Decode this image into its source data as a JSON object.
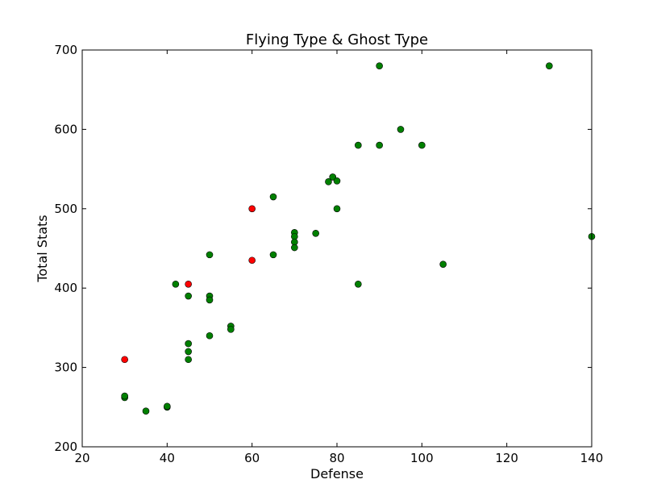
{
  "chart_data": {
    "type": "scatter",
    "title": "Flying Type & Ghost Type",
    "xlabel": "Defense",
    "ylabel": "Total Stats",
    "xlim": [
      20,
      140
    ],
    "ylim": [
      200,
      700
    ],
    "xticks": [
      20,
      40,
      60,
      80,
      100,
      120,
      140
    ],
    "yticks": [
      200,
      300,
      400,
      500,
      600,
      700
    ],
    "grid": false,
    "series": [
      {
        "color": "#008000",
        "points": [
          [
            30,
            262
          ],
          [
            30,
            264
          ],
          [
            35,
            245
          ],
          [
            40,
            250
          ],
          [
            40,
            251
          ],
          [
            42,
            405
          ],
          [
            45,
            390
          ],
          [
            45,
            330
          ],
          [
            45,
            320
          ],
          [
            45,
            310
          ],
          [
            50,
            442
          ],
          [
            50,
            390
          ],
          [
            50,
            385
          ],
          [
            50,
            340
          ],
          [
            55,
            352
          ],
          [
            55,
            348
          ],
          [
            65,
            515
          ],
          [
            65,
            442
          ],
          [
            70,
            470
          ],
          [
            70,
            465
          ],
          [
            70,
            458
          ],
          [
            70,
            451
          ],
          [
            75,
            469
          ],
          [
            78,
            534
          ],
          [
            79,
            540
          ],
          [
            80,
            535
          ],
          [
            80,
            500
          ],
          [
            85,
            580
          ],
          [
            85,
            405
          ],
          [
            90,
            680
          ],
          [
            90,
            580
          ],
          [
            95,
            600
          ],
          [
            100,
            580
          ],
          [
            105,
            430
          ],
          [
            130,
            680
          ],
          [
            140,
            465
          ]
        ]
      },
      {
        "color": "#ff0000",
        "points": [
          [
            30,
            310
          ],
          [
            45,
            405
          ],
          [
            60,
            500
          ],
          [
            60,
            435
          ]
        ]
      }
    ]
  }
}
